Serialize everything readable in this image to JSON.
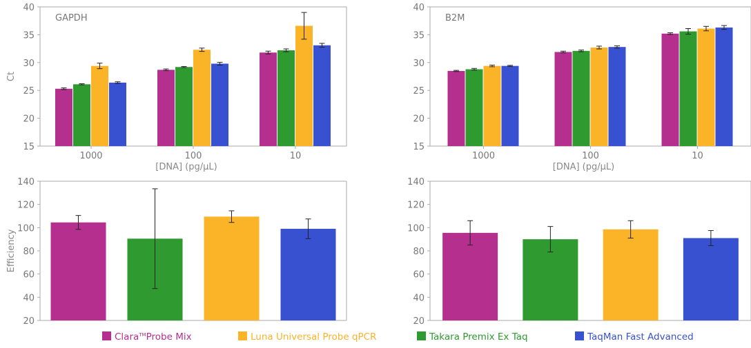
{
  "colors": {
    "clara": "#b5308e",
    "takara": "#2e9a2f",
    "luna": "#fbb328",
    "taqman": "#3851d1",
    "axis": "#aaaaaa",
    "grid": "#e8e8e8",
    "errorbar": "#222222"
  },
  "legend": {
    "position": "bottom",
    "items": [
      {
        "key": "clara",
        "label": "Clara",
        "sup": "TM",
        "suffix": "Probe Mix",
        "color": "#b5308e"
      },
      {
        "key": "luna",
        "label": "Luna Universal Probe qPCR",
        "sup": "",
        "suffix": "",
        "color": "#fbb328"
      },
      {
        "key": "takara",
        "label": "Takara Premix Ex Taq",
        "sup": "",
        "suffix": "",
        "color": "#2e9a2f"
      },
      {
        "key": "taqman",
        "label": "TaqMan Fast Advanced",
        "sup": "",
        "suffix": "",
        "color": "#3851d1"
      }
    ]
  },
  "chart_data": [
    {
      "type": "bar",
      "title": "GAPDH",
      "xlabel": "[DNA] (pg/µL)",
      "ylabel": "Ct",
      "ylim": [
        15,
        40
      ],
      "yticks": [
        15,
        20,
        25,
        30,
        35,
        40
      ],
      "grid": false,
      "categories": [
        "1000",
        "100",
        "10"
      ],
      "series": [
        {
          "name": "Clara Probe Mix",
          "key": "clara",
          "values": [
            25.3,
            28.7,
            31.8
          ],
          "errors": [
            0.15,
            0.15,
            0.25
          ]
        },
        {
          "name": "Takara Premix Ex Taq",
          "key": "takara",
          "values": [
            26.1,
            29.2,
            32.2
          ],
          "errors": [
            0.1,
            0.1,
            0.25
          ]
        },
        {
          "name": "Luna Universal Probe qPCR",
          "key": "luna",
          "values": [
            29.4,
            32.3,
            36.6
          ],
          "errors": [
            0.5,
            0.3,
            2.4
          ]
        },
        {
          "name": "TaqMan Fast Advanced",
          "key": "taqman",
          "values": [
            26.4,
            29.8,
            33.1
          ],
          "errors": [
            0.15,
            0.25,
            0.35
          ]
        }
      ]
    },
    {
      "type": "bar",
      "title": "B2M",
      "xlabel": "[DNA] (pg/µL)",
      "ylabel": "",
      "ylim": [
        15,
        40
      ],
      "yticks": [
        15,
        20,
        25,
        30,
        35,
        40
      ],
      "grid": false,
      "categories": [
        "1000",
        "100",
        "10"
      ],
      "series": [
        {
          "name": "Clara Probe Mix",
          "key": "clara",
          "values": [
            28.5,
            31.9,
            35.2
          ],
          "errors": [
            0.1,
            0.15,
            0.15
          ]
        },
        {
          "name": "Takara Premix Ex Taq",
          "key": "takara",
          "values": [
            28.8,
            32.1,
            35.6
          ],
          "errors": [
            0.15,
            0.15,
            0.5
          ]
        },
        {
          "name": "Luna Universal Probe qPCR",
          "key": "luna",
          "values": [
            29.4,
            32.7,
            36.1
          ],
          "errors": [
            0.15,
            0.25,
            0.4
          ]
        },
        {
          "name": "TaqMan Fast Advanced",
          "key": "taqman",
          "values": [
            29.4,
            32.8,
            36.3
          ],
          "errors": [
            0.1,
            0.2,
            0.35
          ]
        }
      ]
    },
    {
      "type": "bar",
      "title": "",
      "xlabel": "",
      "ylabel": "Efficiency",
      "ylim": [
        20,
        140
      ],
      "yticks": [
        20,
        40,
        60,
        80,
        100,
        120,
        140
      ],
      "grid": false,
      "categories": [
        "Clara Probe Mix",
        "Takara Premix Ex Taq",
        "Luna Universal Probe qPCR",
        "TaqMan Fast Advanced"
      ],
      "values": [
        104.5,
        90.5,
        109.5,
        99
      ],
      "errors": [
        6,
        43,
        5,
        8.5
      ],
      "keys": [
        "clara",
        "takara",
        "luna",
        "taqman"
      ]
    },
    {
      "type": "bar",
      "title": "",
      "xlabel": "",
      "ylabel": "",
      "ylim": [
        20,
        140
      ],
      "yticks": [
        20,
        40,
        60,
        80,
        100,
        120,
        140
      ],
      "grid": false,
      "categories": [
        "Clara Probe Mix",
        "Takara Premix Ex Taq",
        "Luna Universal Probe qPCR",
        "TaqMan Fast Advanced"
      ],
      "values": [
        95.5,
        90,
        98.5,
        91
      ],
      "errors": [
        10.5,
        11,
        7.5,
        6.5
      ],
      "keys": [
        "clara",
        "takara",
        "luna",
        "taqman"
      ]
    }
  ]
}
